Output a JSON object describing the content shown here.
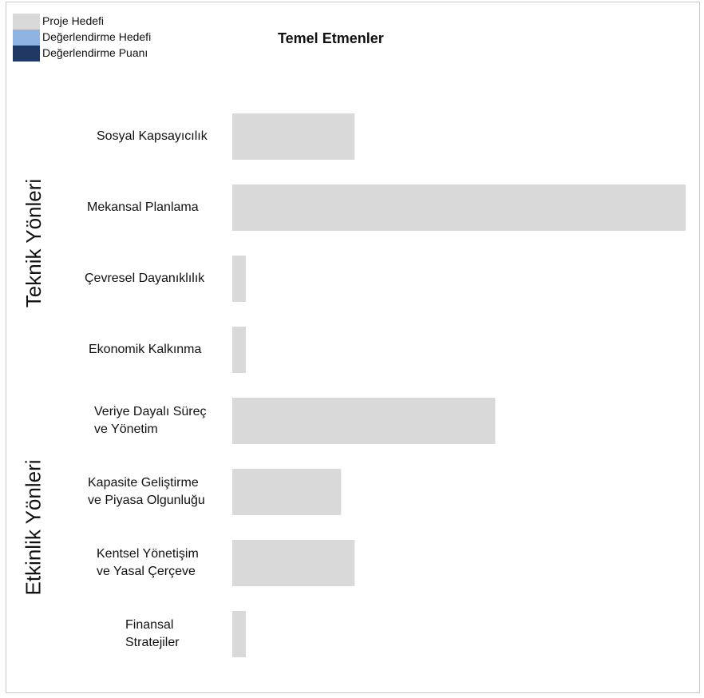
{
  "chart_data": {
    "type": "bar",
    "orientation": "horizontal",
    "title": "Temel Etmenler",
    "legend": [
      {
        "label": "Proje Hedefi",
        "color": "#d9d9d9"
      },
      {
        "label": "Değerlendirme Hedefi",
        "color": "#8eb4e3"
      },
      {
        "label": "Değerlendirme Puanı",
        "color": "#1f3864"
      }
    ],
    "legend_position": "top-left",
    "groups": [
      {
        "name": "Teknik Yönleri",
        "categories": [
          0,
          1,
          2,
          3
        ]
      },
      {
        "name": "Etkinlik Yönleri",
        "categories": [
          4,
          5,
          6,
          7
        ]
      }
    ],
    "categories": [
      "Sosyal Kapsayıcılık",
      "Mekansal Planlama",
      "Çevresel Dayanıklılık",
      "Ekonomik Kalkınma",
      "Veriye Dayalı Süreç\nve Yönetim",
      "Kapasite Geliştirme\nve Piyasa Olgunluğu",
      "Kentsel Yönetişim\nve Yasal Çerçeve",
      "Finansal\nStratejiler"
    ],
    "series": [
      {
        "name": "Proje Hedefi",
        "color": "#d9d9d9",
        "values": [
          27,
          100,
          3,
          3,
          58,
          24,
          27,
          3
        ]
      }
    ],
    "xlim": [
      0,
      100
    ],
    "grid": false
  }
}
